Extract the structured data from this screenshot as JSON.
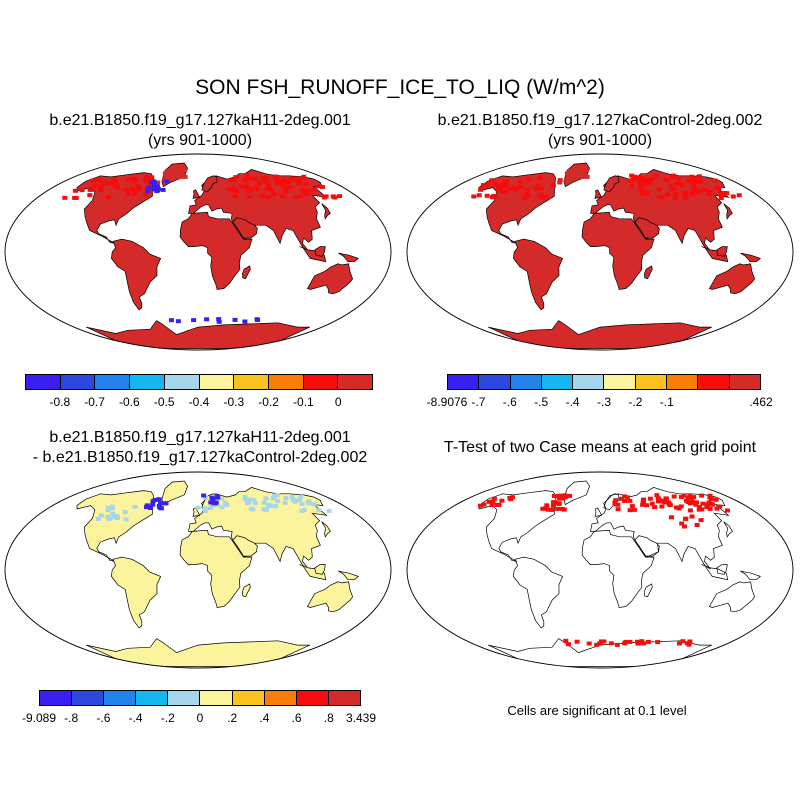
{
  "title": "SON FSH_RUNOFF_ICE_TO_LIQ (W/m^2)",
  "panels": [
    {
      "id": "case1",
      "title_lines": [
        "b.e21.B1850.f19_g17.127kaH11-2deg.001",
        "(yrs 901-1000)"
      ],
      "fill": "case"
    },
    {
      "id": "case2",
      "title_lines": [
        "b.e21.B1850.f19_g17.127kaControl-2deg.002",
        "(yrs 901-1000)"
      ],
      "fill": "control"
    },
    {
      "id": "diff",
      "title_lines": [
        "b.e21.B1850.f19_g17.127kaH11-2deg.001",
        "- b.e21.B1850.f19_g17.127kaControl-2deg.002"
      ],
      "fill": "diff"
    },
    {
      "id": "ttest",
      "title_lines": [
        "T-Test of two Case means at each grid point"
      ],
      "fill": "ttest"
    }
  ],
  "colorbars": {
    "case1": {
      "colors": [
        "#3a1ff2",
        "#2d48de",
        "#2383ee",
        "#14b7f0",
        "#a6d6ec",
        "#fbf49c",
        "#fbc21f",
        "#fb7d05",
        "#f70c0c",
        "#d42a2a"
      ],
      "labels": [
        "-0.8",
        "-0.7",
        "-0.6",
        "-0.5",
        "-0.4",
        "-0.3",
        "-0.2",
        "-0.1",
        "0"
      ]
    },
    "case2": {
      "colors": [
        "#3a1ff2",
        "#2d48de",
        "#2383ee",
        "#14b7f0",
        "#a6d6ec",
        "#fbf49c",
        "#fbc21f",
        "#fb7d05",
        "#f70c0c",
        "#d42a2a"
      ],
      "labels": [
        "-8.9076",
        "-.7",
        "-.6",
        "-.5",
        "-.4",
        "-.3",
        "-.2",
        "-.1",
        ".462"
      ]
    },
    "diff": {
      "colors": [
        "#3a1ff2",
        "#2d48de",
        "#2383ee",
        "#14b7f0",
        "#a6d6ec",
        "#fbf49c",
        "#fbc21f",
        "#fb7d05",
        "#f70c0c",
        "#d42a2a"
      ],
      "labels": [
        "-9.089",
        "-.8",
        "-.6",
        "-.4",
        "-.2",
        "0",
        ".2",
        ".4",
        ".6",
        ".8",
        "3.439"
      ]
    }
  },
  "ttest_note": "Cells are significant at 0.1 level",
  "map_colors": {
    "land_main": "#d42a2a",
    "land_bright": "#f70c0c",
    "cold": "#3a1ff2",
    "diff_land": "#fbf49c",
    "diff_light": "#a6d6ec",
    "sig": "#f70c0c"
  }
}
